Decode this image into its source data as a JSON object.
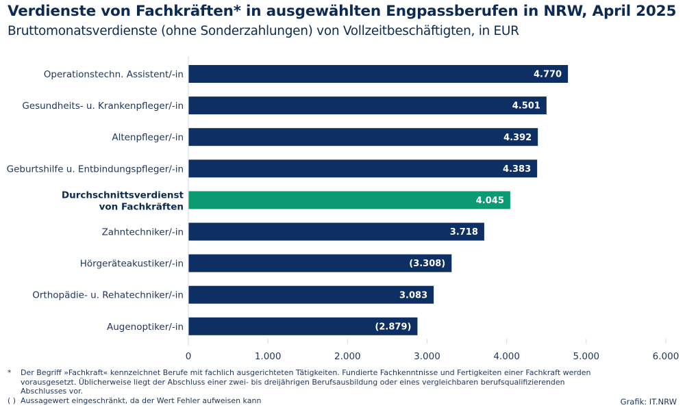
{
  "header": {
    "title": "Verdienste von Fachkräften* in ausgewählten Engpassberufen in NRW, April 2025",
    "subtitle": "Bruttomonatsverdienste (ohne Sonderzahlungen) von Vollzeitbeschäftigten, in EUR"
  },
  "colors": {
    "bar_default": "#0d2f63",
    "bar_highlight": "#0c9a72",
    "axis_line": "#d6d9de",
    "text": "#0c2a52"
  },
  "chart_data": {
    "type": "bar",
    "orientation": "horizontal",
    "title": "Verdienste von Fachkräften* in ausgewählten Engpassberufen in NRW, April 2025",
    "subtitle": "Bruttomonatsverdienste (ohne Sonderzahlungen) von Vollzeitbeschäftigten, in EUR",
    "xlabel": "",
    "ylabel": "",
    "xlim": [
      0,
      6000
    ],
    "xticks": [
      0,
      1000,
      2000,
      3000,
      4000,
      5000,
      6000
    ],
    "xtick_labels": [
      "0",
      "1.000",
      "2.000",
      "3.000",
      "4.000",
      "5.000",
      "6.000"
    ],
    "grid": false,
    "legend": "none",
    "categories": [
      "Operationstechn. Assistent/-in",
      "Gesundheits- u. Krankenpfleger/-in",
      "Altenpfleger/-in",
      "Geburtshilfe u. Entbindungspfleger/-in",
      "Durchschnittsverdienst von Fachkräften",
      "Zahntechniker/-in",
      "Hörgeräteakustiker/-in",
      "Orthopädie- u. Rehatechniker/-in",
      "Augenoptiker/-in"
    ],
    "category_lines": [
      [
        "Operationstechn. Assistent/-in"
      ],
      [
        "Gesundheits- u. Krankenpfleger/-in"
      ],
      [
        "Altenpfleger/-in"
      ],
      [
        "Geburtshilfe u. Entbindungspfleger/-in"
      ],
      [
        "Durchschnittsverdienst",
        "von Fachkräften"
      ],
      [
        "Zahntechniker/-in"
      ],
      [
        "Hörgeräteakustiker/-in"
      ],
      [
        "Orthopädie- u. Rehatechniker/-in"
      ],
      [
        "Augenoptiker/-in"
      ]
    ],
    "values": [
      4770,
      4501,
      4392,
      4383,
      4045,
      3718,
      3308,
      3083,
      2879
    ],
    "value_labels": [
      "4.770",
      "4.501",
      "4.392",
      "4.383",
      "4.045",
      "3.718",
      "(3.308)",
      "3.083",
      "(2.879)"
    ],
    "highlight": [
      false,
      false,
      false,
      false,
      true,
      false,
      false,
      false,
      false
    ],
    "limited_reliability": [
      false,
      false,
      false,
      false,
      false,
      false,
      true,
      false,
      true
    ]
  },
  "footnotes": [
    {
      "mark": "*",
      "text": "Der Begriff »Fachkraft« kennzeichnet Berufe mit fachlich ausgerichteten Tätigkeiten. Fundierte Fachkenntnisse und Fertigkeiten einer Fachkraft werden vorausgesetzt. Üblicherweise liegt der Abschluss einer zwei- bis dreijährigen Berufsausbildung oder eines vergleichbaren berufsqualifizierenden Abschlusses vor."
    },
    {
      "mark": "( )",
      "text": "Aussagewert eingeschränkt, da der Wert Fehler aufweisen kann"
    }
  ],
  "source": "Grafik: IT.NRW"
}
